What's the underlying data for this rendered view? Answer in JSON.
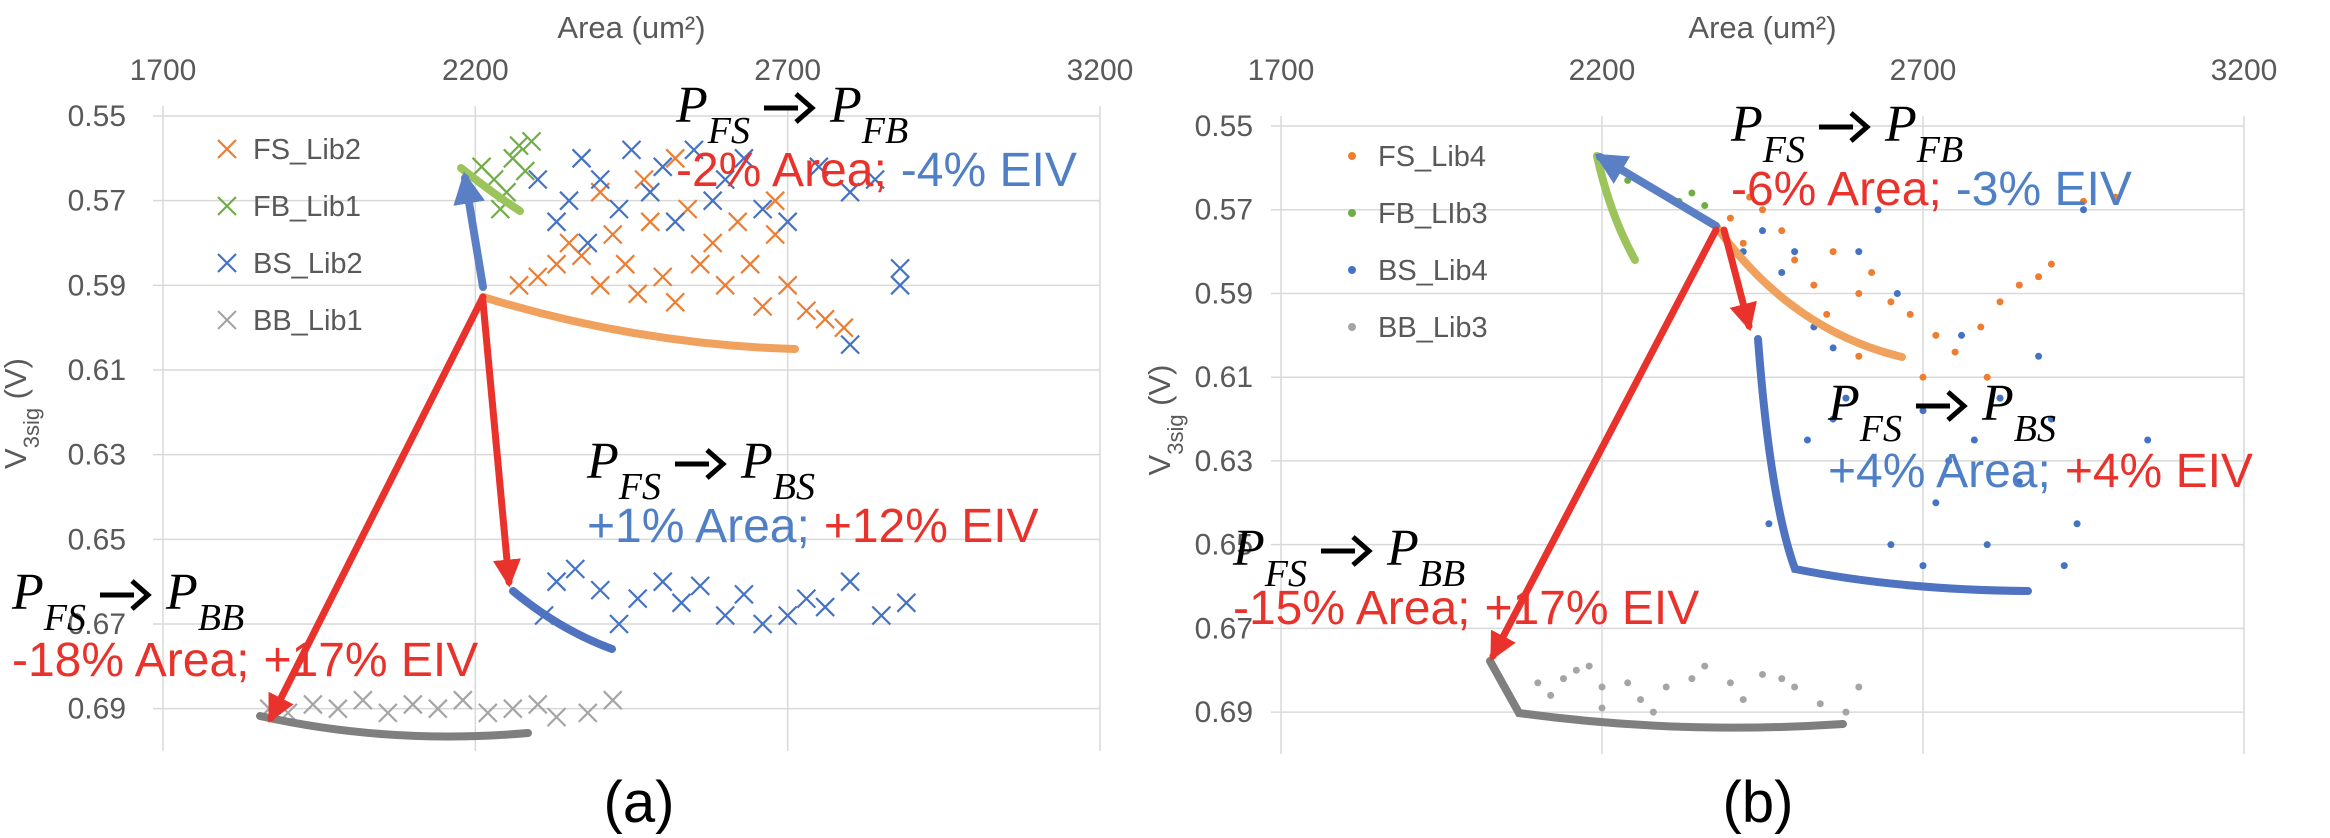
{
  "chart_data": [
    {
      "type": "scatter",
      "panel_label": "(a)",
      "xlabel": "Area (um²)",
      "ylabel": [
        "V",
        "3sig",
        " (V)"
      ],
      "xlim": [
        1700,
        3200
      ],
      "xticks": [
        1700,
        2200,
        2700,
        3200
      ],
      "ylim": [
        0.55,
        0.7
      ],
      "yticks": [
        0.55,
        0.57,
        0.59,
        0.61,
        0.63,
        0.65,
        0.67,
        0.69
      ],
      "invert_y": true,
      "grid": true,
      "legend": "upper left",
      "series": [
        {
          "name": "FS_Lib2",
          "color": "#ED7D31",
          "marker": "x",
          "x": [
            2270,
            2300,
            2330,
            2350,
            2370,
            2400,
            2420,
            2440,
            2460,
            2480,
            2500,
            2520,
            2540,
            2560,
            2580,
            2600,
            2620,
            2640,
            2660,
            2680,
            2700,
            2730,
            2760,
            2790,
            2470,
            2520,
            2400,
            2680
          ],
          "values": [
            0.59,
            0.588,
            0.585,
            0.58,
            0.583,
            0.59,
            0.578,
            0.585,
            0.592,
            0.575,
            0.588,
            0.594,
            0.572,
            0.585,
            0.58,
            0.59,
            0.575,
            0.585,
            0.595,
            0.578,
            0.59,
            0.596,
            0.598,
            0.6,
            0.565,
            0.56,
            0.568,
            0.57
          ]
        },
        {
          "name": "FB_Lib1",
          "color": "#70AD47",
          "marker": "x",
          "x": [
            2210,
            2230,
            2250,
            2260,
            2270,
            2280,
            2290,
            2240
          ],
          "values": [
            0.562,
            0.565,
            0.568,
            0.56,
            0.557,
            0.563,
            0.556,
            0.572
          ]
        },
        {
          "name": "BS_Lib2",
          "color": "#4472C4",
          "marker": "x",
          "x": [
            2300,
            2330,
            2350,
            2370,
            2380,
            2400,
            2430,
            2450,
            2480,
            2500,
            2520,
            2550,
            2580,
            2600,
            2630,
            2660,
            2700,
            2750,
            2800,
            2840,
            2880,
            2880,
            2800,
            2310,
            2330,
            2360,
            2400,
            2430,
            2460,
            2500,
            2530,
            2560,
            2600,
            2630,
            2660,
            2700,
            2730,
            2760,
            2800,
            2850,
            2890
          ],
          "values": [
            0.565,
            0.575,
            0.57,
            0.56,
            0.58,
            0.565,
            0.572,
            0.558,
            0.568,
            0.562,
            0.575,
            0.558,
            0.57,
            0.565,
            0.56,
            0.572,
            0.575,
            0.562,
            0.568,
            0.565,
            0.586,
            0.59,
            0.604,
            0.668,
            0.66,
            0.657,
            0.662,
            0.67,
            0.664,
            0.66,
            0.665,
            0.661,
            0.668,
            0.663,
            0.67,
            0.668,
            0.664,
            0.666,
            0.66,
            0.668,
            0.665
          ]
        },
        {
          "name": "BB_Lib1",
          "color": "#A5A5A5",
          "marker": "x",
          "x": [
            1870,
            1900,
            1940,
            1980,
            2020,
            2060,
            2100,
            2140,
            2180,
            2220,
            2260,
            2300,
            2330,
            2380,
            2420
          ],
          "values": [
            0.69,
            0.691,
            0.689,
            0.69,
            0.688,
            0.691,
            0.689,
            0.69,
            0.688,
            0.691,
            0.69,
            0.689,
            0.692,
            0.691,
            0.688
          ]
        }
      ],
      "annotations": [
        {
          "symbol": "P",
          "from": "FS",
          "to": "FB",
          "area": "-2% Area;",
          "area_color": "#E8322B",
          "eiv": "-4% EIV",
          "eiv_color": "#4F7FC4"
        },
        {
          "symbol": "P",
          "from": "FS",
          "to": "BS",
          "area": "+1% Area;",
          "area_color": "#4F7FC4",
          "eiv": "+12% EIV",
          "eiv_color": "#E8322B"
        },
        {
          "symbol": "P",
          "from": "FS",
          "to": "BB",
          "area": "-18% Area;",
          "area_color": "#E8322B",
          "eiv": "+17% EIV",
          "eiv_color": "#E8322B"
        }
      ]
    },
    {
      "type": "scatter",
      "panel_label": "(b)",
      "xlabel": "Area (um²)",
      "ylabel": [
        "V",
        "3sig",
        " (V)"
      ],
      "xlim": [
        1700,
        3200
      ],
      "xticks": [
        1700,
        2200,
        2700,
        3200
      ],
      "ylim": [
        0.55,
        0.7
      ],
      "yticks": [
        0.55,
        0.57,
        0.59,
        0.61,
        0.63,
        0.65,
        0.67,
        0.69
      ],
      "invert_y": true,
      "grid": true,
      "legend": "upper left",
      "series": [
        {
          "name": "FS_Lib4",
          "color": "#ED7D31",
          "marker": "dot",
          "x": [
            2380,
            2400,
            2420,
            2450,
            2480,
            2500,
            2530,
            2560,
            2600,
            2620,
            2650,
            2680,
            2720,
            2750,
            2790,
            2820,
            2850,
            2880,
            2900,
            2950,
            3000,
            2600,
            2800,
            2550,
            2700,
            2430
          ],
          "values": [
            0.575,
            0.572,
            0.578,
            0.57,
            0.575,
            0.582,
            0.588,
            0.58,
            0.59,
            0.585,
            0.592,
            0.595,
            0.6,
            0.604,
            0.598,
            0.592,
            0.588,
            0.586,
            0.583,
            0.568,
            0.567,
            0.605,
            0.61,
            0.595,
            0.61,
            0.567
          ]
        },
        {
          "name": "FB_LIb3",
          "color": "#70AD47",
          "marker": "dot",
          "x": [
            2200,
            2240,
            2280,
            2320,
            2340,
            2360
          ],
          "values": [
            0.562,
            0.563,
            0.565,
            0.568,
            0.566,
            0.569
          ]
        },
        {
          "name": "BS_Lib4",
          "color": "#4472C4",
          "marker": "dot",
          "x": [
            2420,
            2450,
            2480,
            2500,
            2530,
            2560,
            2600,
            2630,
            2660,
            2700,
            2700,
            2720,
            2740,
            2760,
            2780,
            2800,
            2820,
            2850,
            2880,
            2900,
            2920,
            2940,
            2950,
            2520,
            2560,
            2580,
            2460,
            2650,
            3050
          ],
          "values": [
            0.58,
            0.575,
            0.585,
            0.58,
            0.598,
            0.603,
            0.58,
            0.57,
            0.59,
            0.618,
            0.655,
            0.64,
            0.63,
            0.6,
            0.625,
            0.65,
            0.615,
            0.635,
            0.605,
            0.62,
            0.655,
            0.645,
            0.57,
            0.625,
            0.62,
            0.615,
            0.645,
            0.65,
            0.625
          ]
        },
        {
          "name": "BB_Lib3",
          "color": "#A5A5A5",
          "marker": "dot",
          "x": [
            2100,
            2120,
            2140,
            2160,
            2180,
            2200,
            2240,
            2260,
            2300,
            2340,
            2360,
            2400,
            2420,
            2450,
            2480,
            2500,
            2540,
            2580,
            2600,
            2200,
            2280
          ],
          "values": [
            0.683,
            0.686,
            0.682,
            0.68,
            0.679,
            0.684,
            0.683,
            0.687,
            0.684,
            0.682,
            0.679,
            0.683,
            0.687,
            0.681,
            0.682,
            0.684,
            0.688,
            0.69,
            0.684,
            0.689,
            0.69
          ]
        }
      ],
      "annotations": [
        {
          "symbol": "P",
          "from": "FS",
          "to": "FB",
          "area": "-6% Area;",
          "area_color": "#E8322B",
          "eiv": "-3% EIV",
          "eiv_color": "#4F7FC4"
        },
        {
          "symbol": "P",
          "from": "FS",
          "to": "BS",
          "area": "+4% Area;",
          "area_color": "#4F7FC4",
          "eiv": "+4% EIV",
          "eiv_color": "#E8322B"
        },
        {
          "symbol": "P",
          "from": "FS",
          "to": "BB",
          "area": "-15% Area;",
          "area_color": "#E8322B",
          "eiv": "+17% EIV",
          "eiv_color": "#E8322B"
        }
      ]
    }
  ]
}
